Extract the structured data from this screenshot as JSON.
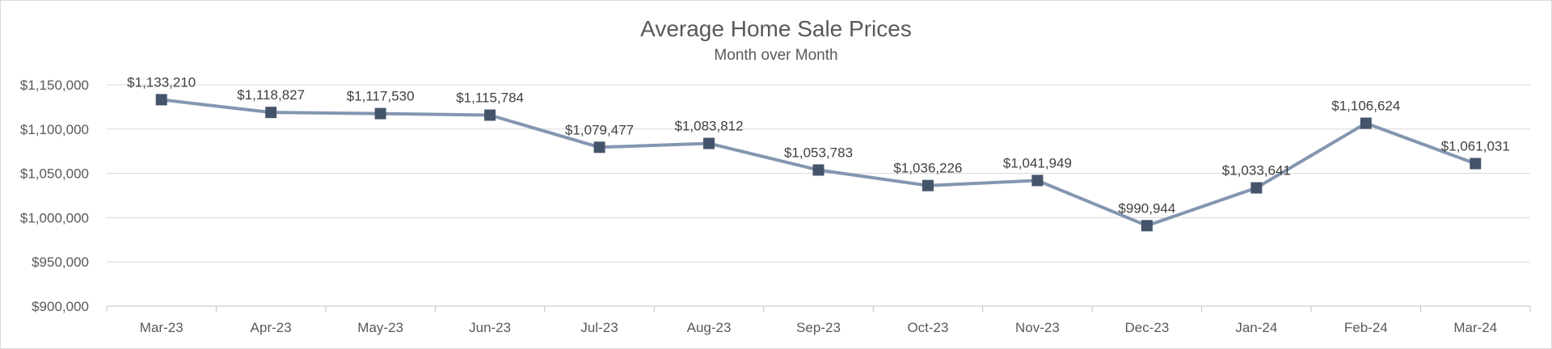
{
  "chart_data": {
    "type": "line",
    "title": "Average Home Sale Prices",
    "subtitle": "Month over Month",
    "categories": [
      "Mar-23",
      "Apr-23",
      "May-23",
      "Jun-23",
      "Jul-23",
      "Aug-23",
      "Sep-23",
      "Oct-23",
      "Nov-23",
      "Dec-23",
      "Jan-24",
      "Feb-24",
      "Mar-24"
    ],
    "series": [
      {
        "values": [
          1133210,
          1118827,
          1117530,
          1115784,
          1079477,
          1083812,
          1053783,
          1036226,
          1041949,
          990944,
          1033641,
          1106624,
          1061031
        ],
        "labels": [
          "$1,133,210",
          "$1,118,827",
          "$1,117,530",
          "$1,115,784",
          "$1,079,477",
          "$1,083,812",
          "$1,053,783",
          "$1,036,226",
          "$1,041,949",
          "$990,944",
          "$1,033,641",
          "$1,106,624",
          "$1,061,031"
        ],
        "color": "#8496b0",
        "marker_color": "#44546a"
      }
    ],
    "ylim": [
      900000,
      1150000
    ],
    "yticks": [
      900000,
      950000,
      1000000,
      1050000,
      1100000,
      1150000
    ],
    "ytick_labels": [
      "$900,000",
      "$950,000",
      "$1,000,000",
      "$1,050,000",
      "$1,100,000",
      "$1,150,000"
    ],
    "grid": true,
    "legend": "none"
  }
}
